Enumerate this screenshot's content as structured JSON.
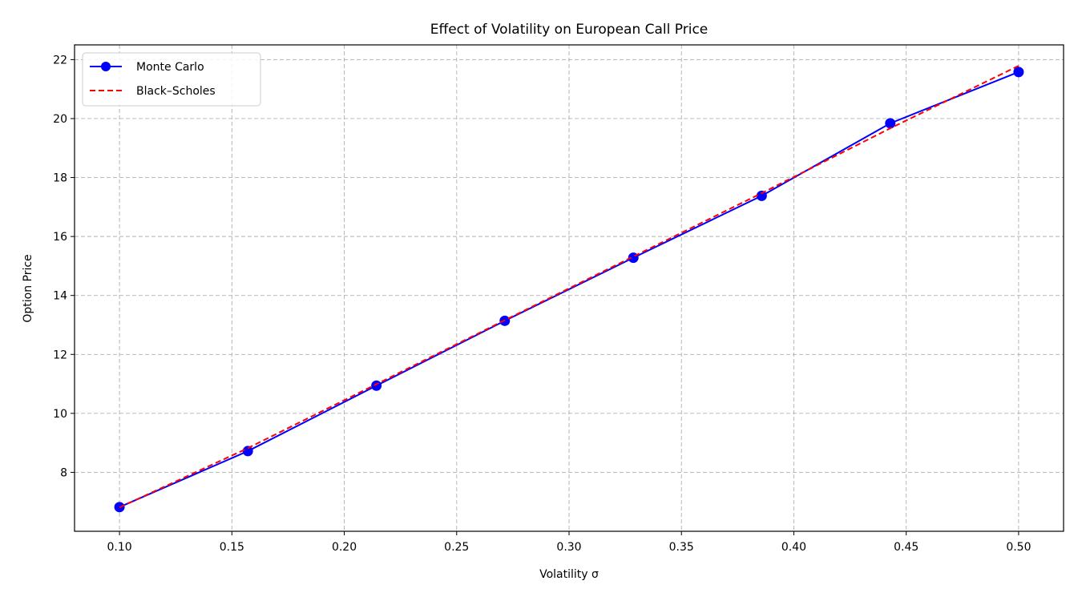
{
  "chart_data": {
    "type": "line",
    "title": "Effect of Volatility on European Call Price",
    "xlabel": "Volatility σ",
    "ylabel": "Option Price",
    "xlim": [
      0.08,
      0.52
    ],
    "ylim": [
      6.0,
      22.5
    ],
    "x_ticks": [
      0.1,
      0.15,
      0.2,
      0.25,
      0.3,
      0.35,
      0.4,
      0.45,
      0.5
    ],
    "x_tick_labels": [
      "0.10",
      "0.15",
      "0.20",
      "0.25",
      "0.30",
      "0.35",
      "0.40",
      "0.45",
      "0.50"
    ],
    "y_ticks": [
      8,
      10,
      12,
      14,
      16,
      18,
      20,
      22
    ],
    "y_tick_labels": [
      "8",
      "10",
      "12",
      "14",
      "16",
      "18",
      "20",
      "22"
    ],
    "grid": true,
    "legend_position": "top-left",
    "series": [
      {
        "name": "Monte Carlo",
        "color": "#0000ff",
        "style": "solid",
        "marker": "circle",
        "x": [
          0.1,
          0.1571,
          0.2143,
          0.2714,
          0.3286,
          0.3857,
          0.4429,
          0.5
        ],
        "y": [
          6.82,
          8.72,
          10.94,
          13.14,
          15.28,
          17.38,
          19.84,
          21.58
        ]
      },
      {
        "name": "Black–Scholes",
        "color": "#ff0000",
        "style": "dashed",
        "marker": "none",
        "x": [
          0.1,
          0.1571,
          0.2143,
          0.2714,
          0.3286,
          0.3857,
          0.4429,
          0.5
        ],
        "y": [
          6.81,
          8.82,
          10.99,
          13.16,
          15.32,
          17.47,
          19.67,
          21.79
        ]
      }
    ]
  }
}
